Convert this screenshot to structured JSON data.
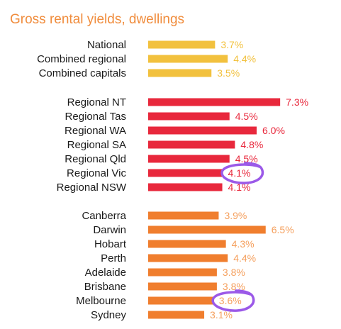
{
  "chart_data": {
    "type": "bar",
    "orientation": "horizontal",
    "title": "Gross rental yields, dwellings",
    "unit": "%",
    "xlim": [
      0,
      8
    ],
    "grid": false,
    "legend": "none",
    "groups": [
      {
        "name": "aggregates",
        "color": "#F2C13E",
        "label_color": "#F2C13E",
        "categories": [
          "National",
          "Combined regional",
          "Combined capitals"
        ],
        "values": [
          3.7,
          4.4,
          3.5
        ],
        "labels": [
          "3.7%",
          "4.4%",
          "3.5%"
        ]
      },
      {
        "name": "regional",
        "color": "#E8283C",
        "label_color": "#E8283C",
        "categories": [
          "Regional NT",
          "Regional Tas",
          "Regional WA",
          "Regional SA",
          "Regional Qld",
          "Regional Vic",
          "Regional NSW"
        ],
        "values": [
          7.3,
          4.5,
          6.0,
          4.8,
          4.5,
          4.1,
          4.1
        ],
        "labels": [
          "7.3%",
          "4.5%",
          "6.0%",
          "4.8%",
          "4.5%",
          "4.1%",
          "4.1%"
        ]
      },
      {
        "name": "capitals",
        "color": "#F07E2E",
        "label_color": "#F5A05E",
        "categories": [
          "Canberra",
          "Darwin",
          "Hobart",
          "Perth",
          "Adelaide",
          "Brisbane",
          "Melbourne",
          "Sydney"
        ],
        "values": [
          3.9,
          6.5,
          4.3,
          4.4,
          3.8,
          3.8,
          3.6,
          3.1
        ],
        "labels": [
          "3.9%",
          "6.5%",
          "4.3%",
          "4.4%",
          "3.8%",
          "3.8%",
          "3.6%",
          "3.1%"
        ]
      }
    ],
    "annotations": [
      {
        "type": "circle",
        "target": "Regional Vic",
        "color": "#9B59E8"
      },
      {
        "type": "circle",
        "target": "Melbourne",
        "color": "#9B59E8"
      }
    ]
  }
}
